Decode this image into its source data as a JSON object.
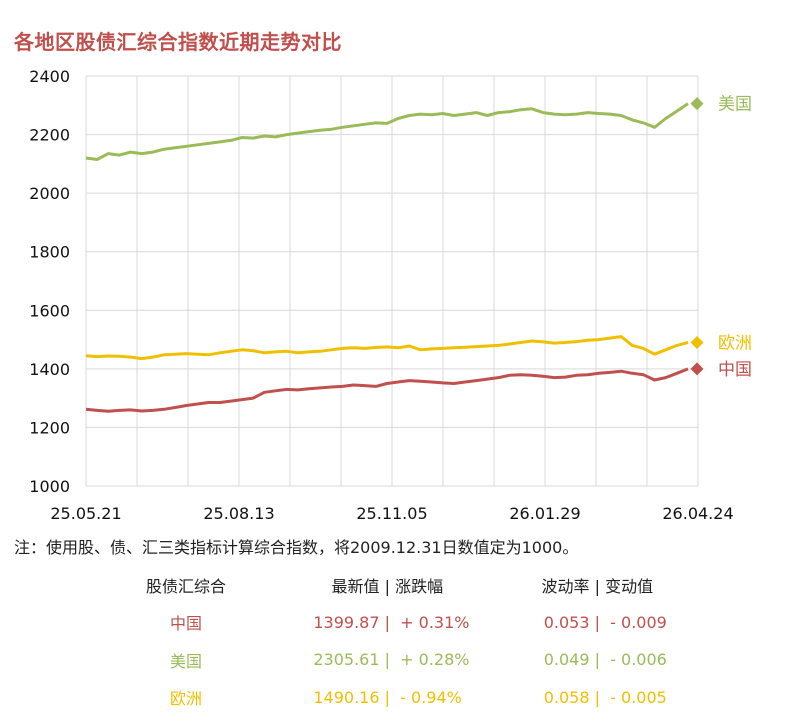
{
  "title": "各地区股债汇综合指数近期走势对比",
  "note": "注：使用股、债、汇三类指标计算综合指数，将2009.12.31日数值定为1000。",
  "chart_data": {
    "type": "line",
    "title": "各地区股债汇综合指数近期走势对比",
    "xlabel": "",
    "ylabel": "",
    "ylim": [
      1000,
      2400
    ],
    "yticks": [
      "1000",
      "1200",
      "1400",
      "1600",
      "1800",
      "2000",
      "2200",
      "2400"
    ],
    "xticks": [
      "25.05.21",
      "25.08.13",
      "25.11.05",
      "26.01.29",
      "26.04.24"
    ],
    "grid": true,
    "legend": "right end of lines",
    "series": [
      {
        "name": "美国",
        "color": "#9bbb59",
        "values": [
          2120,
          2115,
          2135,
          2130,
          2140,
          2135,
          2140,
          2150,
          2155,
          2160,
          2165,
          2170,
          2175,
          2180,
          2190,
          2188,
          2195,
          2192,
          2200,
          2205,
          2210,
          2215,
          2218,
          2225,
          2230,
          2235,
          2240,
          2238,
          2255,
          2265,
          2270,
          2268,
          2272,
          2265,
          2270,
          2275,
          2265,
          2275,
          2278,
          2285,
          2288,
          2275,
          2270,
          2268,
          2270,
          2275,
          2272,
          2270,
          2265,
          2250,
          2240,
          2225,
          2255,
          2280,
          2305.61
        ]
      },
      {
        "name": "欧洲",
        "color": "#f0c000",
        "values": [
          1445,
          1442,
          1444,
          1443,
          1440,
          1435,
          1440,
          1448,
          1450,
          1452,
          1450,
          1448,
          1455,
          1460,
          1465,
          1462,
          1455,
          1458,
          1460,
          1455,
          1458,
          1460,
          1465,
          1470,
          1472,
          1470,
          1473,
          1475,
          1472,
          1478,
          1465,
          1468,
          1470,
          1472,
          1474,
          1476,
          1478,
          1480,
          1485,
          1490,
          1495,
          1492,
          1488,
          1490,
          1493,
          1498,
          1500,
          1505,
          1510,
          1480,
          1470,
          1450,
          1465,
          1480,
          1490.16
        ]
      },
      {
        "name": "中国",
        "color": "#c0504d",
        "values": [
          1262,
          1258,
          1255,
          1258,
          1260,
          1256,
          1258,
          1262,
          1268,
          1275,
          1280,
          1285,
          1285,
          1290,
          1295,
          1300,
          1320,
          1325,
          1330,
          1328,
          1332,
          1335,
          1338,
          1340,
          1345,
          1343,
          1340,
          1350,
          1355,
          1360,
          1358,
          1355,
          1352,
          1350,
          1355,
          1360,
          1365,
          1370,
          1378,
          1380,
          1378,
          1375,
          1370,
          1372,
          1378,
          1380,
          1385,
          1388,
          1392,
          1385,
          1380,
          1362,
          1370,
          1385,
          1399.87
        ]
      }
    ]
  },
  "table": {
    "headers": {
      "name": "股债汇综合",
      "latest": "最新值",
      "sep1": "|",
      "change": "涨跌幅",
      "vol": "波动率",
      "sep2": "|",
      "dvol": "变动值"
    },
    "rows": [
      {
        "name": "中国",
        "latest": "1399.87",
        "change": "+ 0.31%",
        "vol": "0.053",
        "dvol": "- 0.009",
        "sep": "|",
        "color": "#c0504d"
      },
      {
        "name": "美国",
        "latest": "2305.61",
        "change": "+ 0.28%",
        "vol": "0.049",
        "dvol": "- 0.006",
        "sep": "|",
        "color": "#9bbb59"
      },
      {
        "name": "欧洲",
        "latest": "1490.16",
        "change": "- 0.94%",
        "vol": "0.058",
        "dvol": "- 0.005",
        "sep": "|",
        "color": "#f0c000"
      }
    ]
  }
}
